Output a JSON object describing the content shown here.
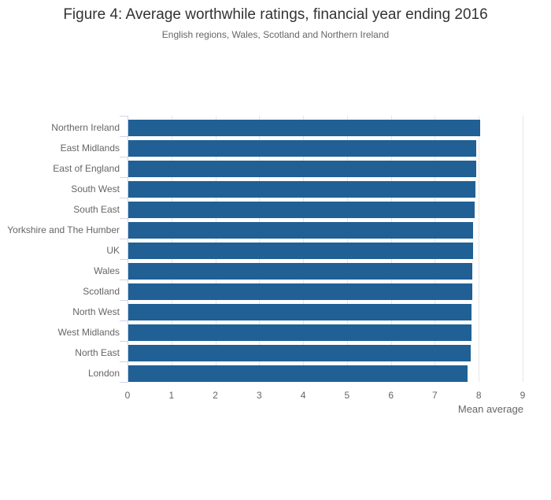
{
  "header": {
    "title": "Figure 4: Average worthwhile ratings, financial year ending 2016",
    "subtitle": "English regions, Wales, Scotland and Northern Ireland"
  },
  "chart_data": {
    "type": "bar",
    "orientation": "horizontal",
    "title": "Figure 4: Average worthwhile ratings, financial year ending 2016",
    "subtitle": "English regions, Wales, Scotland and Northern Ireland",
    "categories": [
      "Northern Ireland",
      "East Midlands",
      "East of England",
      "South West",
      "South East",
      "Yorkshire and The Humber",
      "UK",
      "Wales",
      "Scotland",
      "North West",
      "West Midlands",
      "North East",
      "London"
    ],
    "values": [
      8.01,
      7.93,
      7.92,
      7.91,
      7.89,
      7.86,
      7.85,
      7.84,
      7.83,
      7.82,
      7.81,
      7.8,
      7.73
    ],
    "xlabel": "Mean average",
    "ylabel": "",
    "xlim": [
      0,
      9
    ],
    "x_ticks": [
      0,
      1,
      2,
      3,
      4,
      5,
      6,
      7,
      8,
      9
    ],
    "grid": true,
    "legend": "none",
    "colors": {
      "bar": "#206095",
      "gridline": "#e6e6e6",
      "axis_line": "#ccd6eb",
      "title_text": "#333333",
      "label_text": "#666666"
    }
  }
}
